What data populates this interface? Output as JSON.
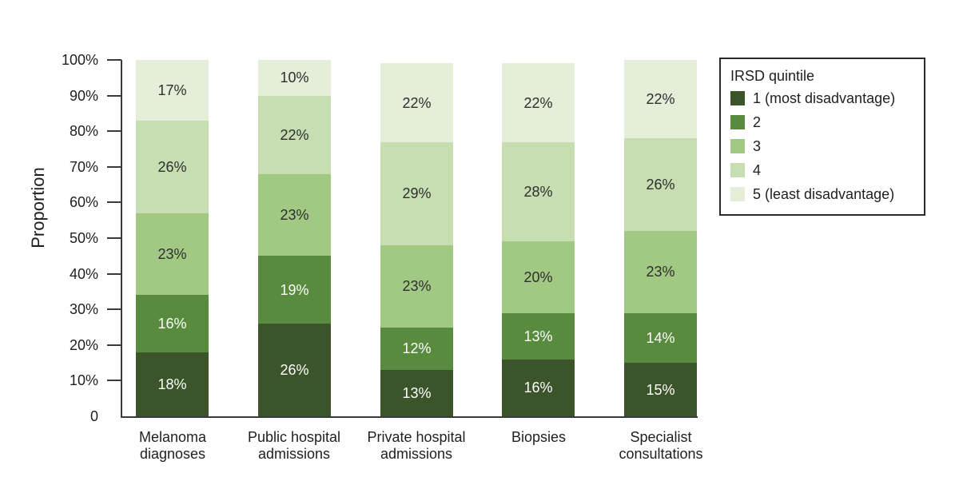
{
  "chart_data": {
    "type": "bar",
    "subtype": "stacked-100-percent",
    "title": "",
    "ylabel": "Proportion",
    "xlabel": "",
    "ylim": [
      0,
      100
    ],
    "grid": false,
    "legend_position": "top-right",
    "categories": [
      "Melanoma\ndiagnoses",
      "Public hospital\nadmissions",
      "Private hospital\nadmissions",
      "Biopsies",
      "Specialist\nconsultations"
    ],
    "series": [
      {
        "name": "1 (most disadvantage)",
        "color": "#3b5429",
        "label_color": "#ffffff",
        "values": [
          18,
          26,
          13,
          16,
          15
        ]
      },
      {
        "name": "2",
        "color": "#588b3d",
        "label_color": "#ffffff",
        "values": [
          16,
          19,
          12,
          13,
          14
        ]
      },
      {
        "name": "3",
        "color": "#a2c984",
        "label_color": "#2e2e2e",
        "values": [
          23,
          23,
          23,
          20,
          23
        ]
      },
      {
        "name": "4",
        "color": "#c7deb2",
        "label_color": "#2e2e2e",
        "values": [
          26,
          22,
          29,
          28,
          26
        ]
      },
      {
        "name": "5 (least disadvantage)",
        "color": "#e4eed8",
        "label_color": "#2e2e2e",
        "values": [
          17,
          10,
          22,
          22,
          22
        ]
      }
    ],
    "value_suffix": "%",
    "yticks": [
      {
        "value": 0,
        "label": "0"
      },
      {
        "value": 10,
        "label": "10%"
      },
      {
        "value": 20,
        "label": "20%"
      },
      {
        "value": 30,
        "label": "30%"
      },
      {
        "value": 40,
        "label": "40%"
      },
      {
        "value": 50,
        "label": "50%"
      },
      {
        "value": 60,
        "label": "60%"
      },
      {
        "value": 70,
        "label": "70%"
      },
      {
        "value": 80,
        "label": "80%"
      },
      {
        "value": 90,
        "label": "90%"
      },
      {
        "value": 100,
        "label": "100%"
      }
    ],
    "legend": {
      "title": "IRSD quintile"
    },
    "axis_color": "#3a3a3a"
  }
}
